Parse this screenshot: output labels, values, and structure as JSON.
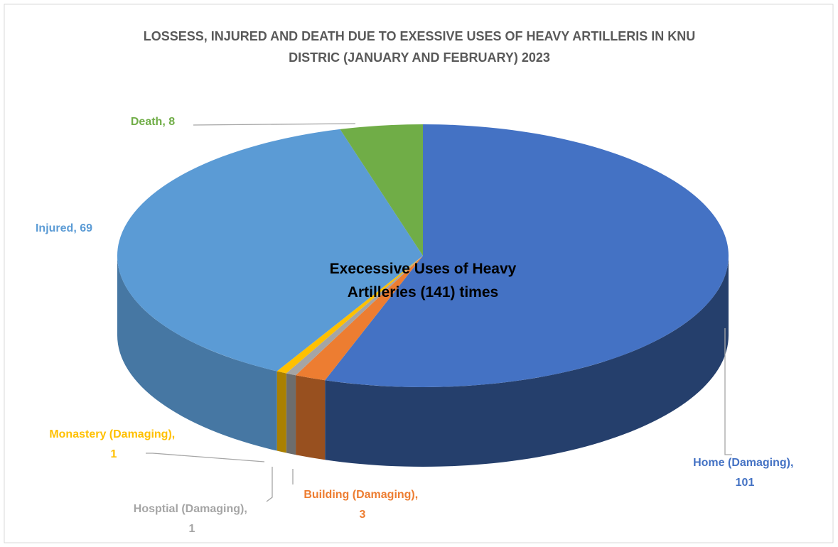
{
  "chart_data": {
    "type": "pie3d",
    "title": "LOSSESS, INJURED AND DEATH DUE TO EXESSIVE USES OF HEAVY ARTILLERIS IN KNU DISTRIC (JANUARY AND FEBRUARY) 2023",
    "annotation": "Execessive Uses of Heavy Artilleries (141) times",
    "categories": [
      "Home (Damaging)",
      "Building (Damaging)",
      "Hosptial (Damaging)",
      "Monastery (Damaging)",
      "Injured",
      "Death"
    ],
    "values": [
      101,
      3,
      1,
      1,
      69,
      8
    ],
    "colors": [
      "#4472c4",
      "#ed7d31",
      "#a5a5a5",
      "#ffc000",
      "#5b9bd5",
      "#70ad47"
    ],
    "label_separator": ", "
  }
}
